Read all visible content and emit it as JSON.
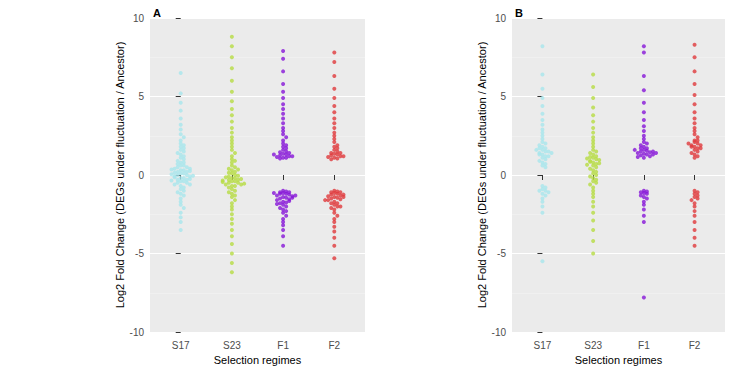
{
  "chart_data": [
    {
      "type": "scatter",
      "title": "A",
      "xlabel": "Selection regimes",
      "ylabel": "Log2 Fold Change (DEGs under fluctuation / Ancestor)",
      "categories": [
        "S17",
        "S23",
        "F1",
        "F2"
      ],
      "colors": [
        "#a8e6ec",
        "#b6dc44",
        "#8716d8",
        "#e0393c"
      ],
      "ylim": [
        -10,
        10
      ],
      "yticks": [
        -10,
        -5,
        0,
        5,
        10
      ],
      "grid": true,
      "values": [
        [
          6.5,
          5.2,
          4.6,
          4.1,
          3.6,
          3.2,
          2.9,
          2.6,
          2.4,
          2.2,
          2.0,
          1.9,
          1.8,
          1.7,
          1.6,
          1.5,
          1.4,
          1.3,
          1.2,
          1.1,
          1.0,
          0.9,
          0.8,
          0.8,
          0.7,
          0.6,
          0.6,
          0.5,
          0.5,
          0.4,
          0.4,
          0.3,
          0.3,
          0.2,
          0.2,
          0.1,
          0.1,
          0.0,
          0.0,
          -0.1,
          -0.1,
          -0.2,
          -0.2,
          -0.3,
          -0.3,
          -0.4,
          -0.4,
          -0.5,
          -0.5,
          -0.6,
          -0.6,
          -0.7,
          -0.8,
          -0.9,
          -1.0,
          -1.1,
          -1.2,
          -1.3,
          -1.5,
          -1.7,
          -1.9,
          -2.1,
          -2.4,
          -2.7,
          -3.0,
          -3.5,
          0.05,
          -0.05,
          0.15,
          -0.15,
          0.25,
          -0.25,
          0.35,
          -0.35
        ],
        [
          8.8,
          8.2,
          7.5,
          6.8,
          6.0,
          5.3,
          4.7,
          4.2,
          3.8,
          3.4,
          3.0,
          2.7,
          2.4,
          2.2,
          2.0,
          1.8,
          1.6,
          1.4,
          1.2,
          1.0,
          0.9,
          0.8,
          0.6,
          0.5,
          0.4,
          0.3,
          0.2,
          0.1,
          0.0,
          -0.1,
          -0.2,
          -0.2,
          -0.3,
          -0.3,
          -0.4,
          -0.4,
          -0.5,
          -0.5,
          -0.6,
          -0.6,
          -0.7,
          -0.7,
          -0.8,
          -0.9,
          -1.0,
          -1.1,
          -1.2,
          -1.3,
          -1.4,
          -1.6,
          -1.8,
          -2.0,
          -2.2,
          -2.5,
          -2.8,
          -3.1,
          -3.5,
          -3.9,
          -4.4,
          -5.0,
          -5.6,
          -6.2,
          -0.05,
          -0.15,
          -0.25,
          -0.35,
          -0.45,
          -0.55,
          0.15,
          0.35
        ],
        [
          7.9,
          7.4,
          6.6,
          5.8,
          5.3,
          4.9,
          4.5,
          4.2,
          3.9,
          3.6,
          3.3,
          3.0,
          2.8,
          2.6,
          2.4,
          2.2,
          2.0,
          1.9,
          1.8,
          1.7,
          1.6,
          1.5,
          1.45,
          1.4,
          1.35,
          1.3,
          1.25,
          1.2,
          1.15,
          1.1,
          1.1,
          1.05,
          1.2,
          1.3,
          -1.0,
          -1.05,
          -1.1,
          -1.1,
          -1.15,
          -1.2,
          -1.2,
          -1.25,
          -1.3,
          -1.35,
          -1.4,
          -1.45,
          -1.5,
          -1.55,
          -1.6,
          -1.7,
          -1.75,
          -1.8,
          -1.9,
          -2.0,
          -2.1,
          -2.2,
          -2.3,
          -2.4,
          -2.6,
          -2.8,
          -3.0,
          -3.2,
          -3.5,
          -3.9,
          -4.5,
          -1.15,
          -1.3,
          -1.45,
          -1.65,
          -1.85
        ],
        [
          7.8,
          7.2,
          6.3,
          5.5,
          4.9,
          4.4,
          4.0,
          3.6,
          3.3,
          3.0,
          2.7,
          2.5,
          2.3,
          2.1,
          1.9,
          1.8,
          1.7,
          1.6,
          1.5,
          1.4,
          1.35,
          1.3,
          1.25,
          1.2,
          1.15,
          1.1,
          1.05,
          1.0,
          1.2,
          1.4,
          -1.0,
          -1.05,
          -1.1,
          -1.15,
          -1.2,
          -1.25,
          -1.3,
          -1.35,
          -1.4,
          -1.45,
          -1.5,
          -1.55,
          -1.6,
          -1.7,
          -1.8,
          -1.9,
          -2.0,
          -2.1,
          -2.2,
          -2.4,
          -2.6,
          -2.8,
          -3.0,
          -3.3,
          -3.6,
          -4.0,
          -4.5,
          -5.3,
          -1.1,
          -1.25,
          -1.4,
          -1.6,
          -1.8,
          -2.0
        ]
      ]
    },
    {
      "type": "scatter",
      "title": "B",
      "xlabel": "Selection regimes",
      "ylabel": "Log2 Fold Change (DEGs under fluctuation / Ancestor)",
      "categories": [
        "S17",
        "S23",
        "F1",
        "F2"
      ],
      "colors": [
        "#a8e6ec",
        "#b6dc44",
        "#8716d8",
        "#e0393c"
      ],
      "ylim": [
        -10,
        10
      ],
      "yticks": [
        -10,
        -5,
        0,
        5,
        10
      ],
      "grid": true,
      "values": [
        [
          8.2,
          6.4,
          5.5,
          4.9,
          4.4,
          3.9,
          3.5,
          3.2,
          2.9,
          2.7,
          2.5,
          2.3,
          2.1,
          2.0,
          1.9,
          1.8,
          1.7,
          1.6,
          1.5,
          1.4,
          1.3,
          1.2,
          1.1,
          1.0,
          0.9,
          0.8,
          0.7,
          0.6,
          0.5,
          1.5,
          1.6,
          1.3,
          1.4,
          1.7,
          1.2,
          -0.7,
          -0.8,
          -0.9,
          -1.0,
          -1.0,
          -1.1,
          -1.2,
          -1.3,
          -1.5,
          -1.7,
          -2.0,
          -2.4,
          -5.5
        ],
        [
          6.4,
          5.6,
          4.9,
          4.3,
          3.8,
          3.4,
          3.0,
          2.7,
          2.4,
          2.2,
          2.0,
          1.8,
          1.6,
          1.5,
          1.4,
          1.3,
          1.2,
          1.1,
          1.0,
          0.9,
          0.8,
          0.7,
          0.6,
          0.5,
          0.4,
          0.3,
          0.2,
          0.1,
          0.0,
          -0.1,
          -0.2,
          -0.3,
          -0.4,
          -0.5,
          -0.6,
          -0.8,
          -1.0,
          -1.2,
          -1.4,
          -1.7,
          -2.0,
          -2.4,
          -2.9,
          -3.5,
          -4.2,
          -5.0,
          0.85,
          0.95,
          1.05,
          0.75,
          0.65,
          1.15
        ],
        [
          8.2,
          7.8,
          6.3,
          5.4,
          4.6,
          4.0,
          3.5,
          3.1,
          2.8,
          2.5,
          2.3,
          2.1,
          2.0,
          1.9,
          1.8,
          1.7,
          1.6,
          1.55,
          1.5,
          1.45,
          1.4,
          1.35,
          1.3,
          1.25,
          1.2,
          1.15,
          1.1,
          1.5,
          1.6,
          1.4,
          1.7,
          1.3,
          -1.0,
          -1.05,
          -1.1,
          -1.15,
          -1.2,
          -1.3,
          -1.4,
          -1.5,
          -1.7,
          -1.9,
          -2.2,
          -2.6,
          -3.0,
          -7.8
        ],
        [
          8.3,
          7.5,
          6.6,
          5.8,
          5.1,
          4.5,
          4.0,
          3.6,
          3.3,
          3.0,
          2.8,
          2.6,
          2.4,
          2.2,
          2.1,
          2.0,
          1.9,
          1.8,
          1.7,
          1.6,
          1.5,
          1.4,
          1.3,
          1.2,
          1.1,
          1.9,
          2.0,
          1.8,
          2.2,
          1.7,
          -1.0,
          -1.1,
          -1.2,
          -1.3,
          -1.4,
          -1.5,
          -1.6,
          -1.8,
          -2.0,
          -2.3,
          -2.6,
          -3.0,
          -3.5,
          -4.0,
          -4.5
        ]
      ]
    }
  ]
}
